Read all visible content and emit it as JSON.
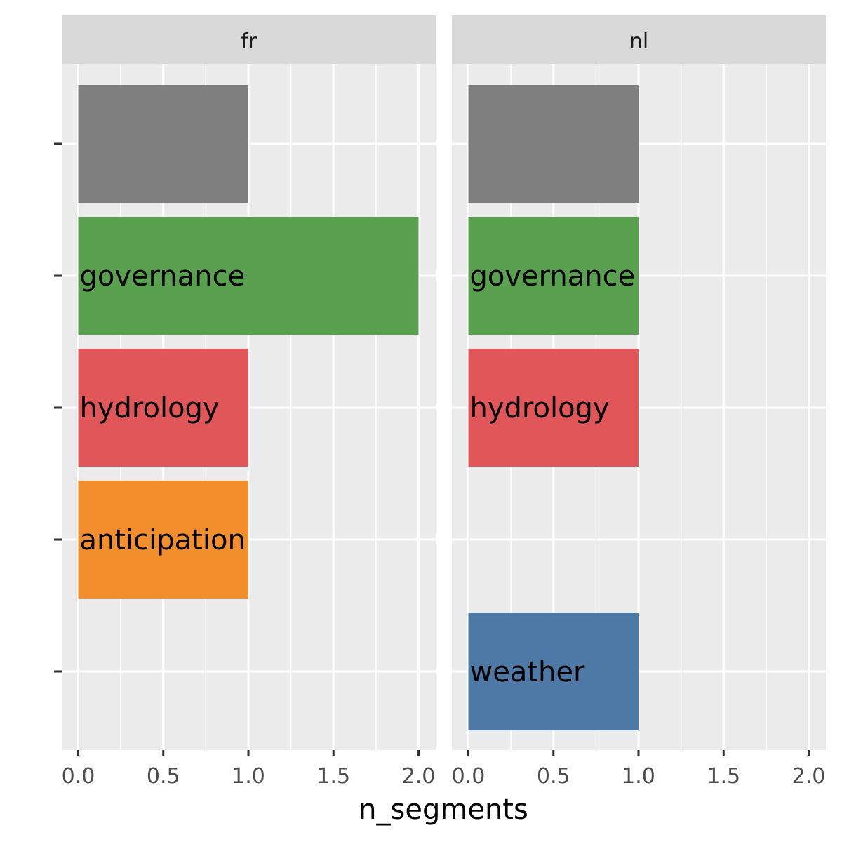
{
  "chart_data": {
    "type": "bar",
    "orientation": "horizontal",
    "facet_by": "language",
    "xlabel": "n_segments",
    "ylabel": "",
    "xlim": [
      0,
      2
    ],
    "x_ticks": [
      "0.0",
      "0.5",
      "1.0",
      "1.5",
      "2.0"
    ],
    "grid": true,
    "legend": "none",
    "categories": [
      "",
      "governance",
      "hydrology",
      "anticipation",
      "weather"
    ],
    "colors": {
      "": "#7f7f7f",
      "governance": "#59a14f",
      "hydrology": "#e15759",
      "anticipation": "#f28e2b",
      "weather": "#4e79a7"
    },
    "facets": [
      {
        "name": "fr",
        "bars": [
          {
            "category": "",
            "value": 1
          },
          {
            "category": "governance",
            "value": 2
          },
          {
            "category": "hydrology",
            "value": 1
          },
          {
            "category": "anticipation",
            "value": 1
          }
        ]
      },
      {
        "name": "nl",
        "bars": [
          {
            "category": "",
            "value": 1
          },
          {
            "category": "governance",
            "value": 1
          },
          {
            "category": "hydrology",
            "value": 1
          },
          {
            "category": "weather",
            "value": 1
          }
        ]
      }
    ]
  }
}
